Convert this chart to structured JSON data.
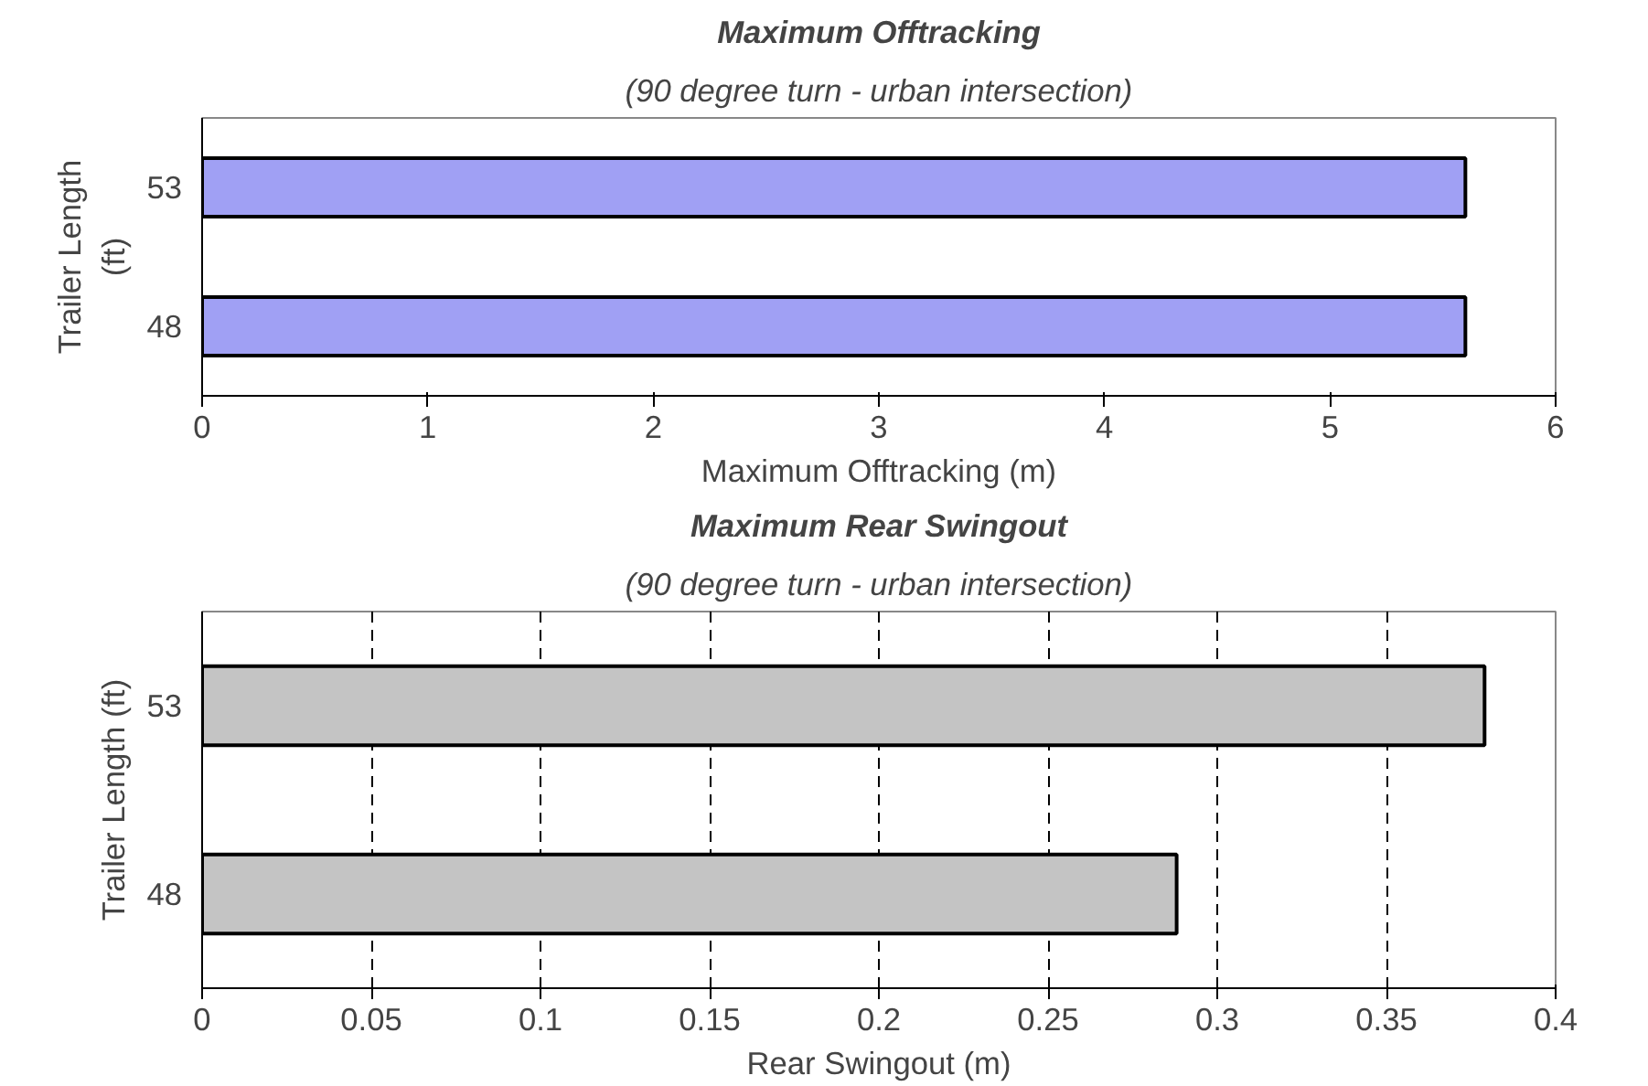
{
  "chart_data": [
    {
      "type": "bar",
      "orientation": "horizontal",
      "title": "Maximum Offtracking",
      "subtitle": "(90 degree turn - urban intersection)",
      "xlabel": "Maximum Offtracking (m)",
      "ylabel": "Trailer Length (ft)",
      "categories": [
        "53",
        "48"
      ],
      "values": [
        5.6,
        5.6
      ],
      "color": "#a0a0f4",
      "xlim": [
        0,
        6
      ],
      "xticks": [
        0,
        1,
        2,
        3,
        4,
        5,
        6
      ],
      "grid": false
    },
    {
      "type": "bar",
      "orientation": "horizontal",
      "title": "Maximum Rear Swingout",
      "subtitle": "(90 degree turn - urban intersection)",
      "xlabel": "Rear Swingout (m)",
      "ylabel": "Trailer Length (ft)",
      "categories": [
        "53",
        "48"
      ],
      "values": [
        0.379,
        0.288
      ],
      "color": "#c4c4c4",
      "xlim": [
        0,
        0.4
      ],
      "xticks": [
        0,
        0.05,
        0.1,
        0.15,
        0.2,
        0.25,
        0.3,
        0.35,
        0.4
      ],
      "grid": "x"
    }
  ]
}
